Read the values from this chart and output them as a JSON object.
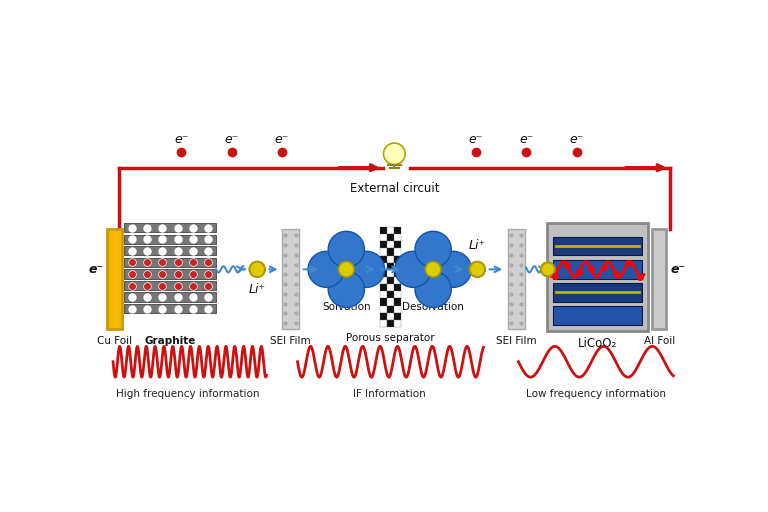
{
  "bg_color": "#ffffff",
  "wave_color": "#cc1111",
  "electron_color": "#cc1111",
  "arrow_color": "#cc1111",
  "li_color": "#ddcc00",
  "li_outline": "#aa9900",
  "blue": "#4488cc",
  "petal_color": "#3377cc",
  "petal_outline": "#1155aa",
  "graphite_fill": "#777777",
  "graphite_ec": "#444444",
  "sei_fill": "#cccccc",
  "sei_ec": "#aaaaaa",
  "cu_fill": "#f5b800",
  "cu_ec": "#cc9900",
  "al_fill": "#cccccc",
  "al_ec": "#999999",
  "labels": {
    "cu_foil": "Cu Foil",
    "graphite": "Graphite",
    "sei_film_left": "SEI Film",
    "solvation": "Solvation",
    "porous_sep": "Porous separator",
    "desolvation": "Desolvation",
    "sei_film_right": "SEI Film",
    "licoo2": "LiCoO₂",
    "al_foil": "Al Foil",
    "external": "External circuit",
    "high_freq": "High frequency information",
    "if_info": "IF Information",
    "low_freq": "Low frequency information",
    "li_plus": "Li⁺",
    "e_minus": "e⁻"
  }
}
